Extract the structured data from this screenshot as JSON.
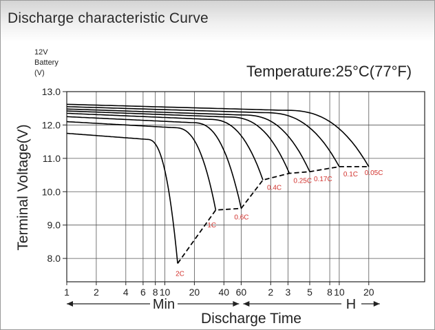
{
  "header": {
    "title": "Discharge characteristic Curve"
  },
  "chart_data": {
    "type": "line",
    "subtitle": "Temperature:25°C(77°F)",
    "unit_note": [
      "12V",
      "Battery",
      "(V)"
    ],
    "ylabel": "Terminal Voltage(V)",
    "xlabel": "Discharge Time",
    "ylim": [
      7.3,
      13.0
    ],
    "y_ticks": [
      "8.0",
      "9.0",
      "10.0",
      "11.0",
      "12.0",
      "13.0"
    ],
    "grid": true,
    "x_axis": {
      "segments": [
        {
          "label": "Min",
          "unit": "min",
          "range": [
            1,
            60
          ],
          "ticks": [
            1,
            2,
            4,
            6,
            8,
            10,
            20,
            40
          ],
          "tick_labels": [
            "1",
            "2",
            "4",
            "6",
            "8",
            "10",
            "20",
            "40"
          ]
        },
        {
          "label": "H",
          "unit": "h",
          "range": [
            1,
            20
          ],
          "ticks": [
            2,
            3,
            5,
            8,
            10,
            20
          ],
          "tick_labels": [
            "2",
            "3",
            "5",
            "8",
            "10",
            "20"
          ]
        }
      ],
      "boundary_label": "60"
    },
    "series": [
      {
        "name": "2C",
        "initial_v": 11.75,
        "end_minutes": 13.5,
        "end_v": 7.85
      },
      {
        "name": "1C",
        "initial_v": 12.1,
        "end_minutes": 33,
        "end_v": 9.45
      },
      {
        "name": "0.6C",
        "initial_v": 12.25,
        "end_minutes": 60,
        "end_v": 9.5
      },
      {
        "name": "0.4C",
        "initial_v": 12.35,
        "end_minutes": 100,
        "end_v": 10.35
      },
      {
        "name": "0.25C",
        "initial_v": 12.42,
        "end_minutes": 186,
        "end_v": 10.55
      },
      {
        "name": "0.17C",
        "initial_v": 12.48,
        "end_minutes": 300,
        "end_v": 10.6
      },
      {
        "name": "0.1C",
        "initial_v": 12.55,
        "end_minutes": 600,
        "end_v": 10.75
      },
      {
        "name": "0.05C",
        "initial_v": 12.62,
        "end_minutes": 1200,
        "end_v": 10.75
      }
    ],
    "cutoff_line": {
      "style": "dashed",
      "points": [
        [
          13.5,
          7.85
        ],
        [
          33,
          9.45
        ],
        [
          60,
          9.5
        ],
        [
          100,
          10.35
        ],
        [
          186,
          10.55
        ],
        [
          300,
          10.6
        ],
        [
          600,
          10.75
        ],
        [
          1200,
          10.75
        ]
      ]
    },
    "colors": {
      "curve": "#000000",
      "label": "#d2322d",
      "grid": "#555555"
    }
  }
}
